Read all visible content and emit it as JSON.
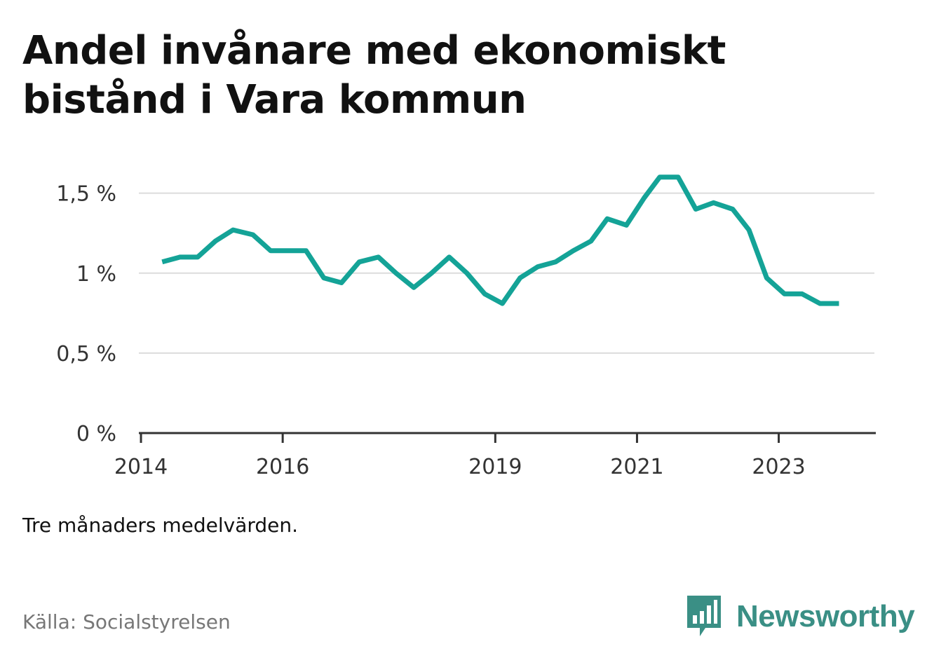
{
  "title_lines": [
    "Andel invånare med ekonomiskt",
    "bistånd i Vara kommun"
  ],
  "note": "Tre månaders medelvärden.",
  "source": "Källa: Socialstyrelsen",
  "brand": {
    "name": "Newsworthy",
    "icon": "newsworthy-logo-icon",
    "color": "#3a8f85"
  },
  "chart_data": {
    "type": "line",
    "line_color": "#14a397",
    "grid": true,
    "y_tick_values": [
      0,
      0.5,
      1,
      1.5
    ],
    "y_tick_labels": [
      "0 %",
      "0,5 %",
      "1 %",
      "1,5 %"
    ],
    "ylim": [
      0,
      1.7
    ],
    "x_tick_values": [
      2014,
      2016,
      2019,
      2021,
      2023
    ],
    "x_tick_labels": [
      "2014",
      "2016",
      "2019",
      "2021",
      "2023"
    ],
    "xlim": [
      2013.97,
      2024.35
    ],
    "series": [
      {
        "x": [
          2014.3,
          2014.55,
          2014.8,
          2015.05,
          2015.3,
          2015.58,
          2015.83,
          2016.07,
          2016.33,
          2016.58,
          2016.83,
          2017.08,
          2017.35,
          2017.6,
          2017.85,
          2018.1,
          2018.35,
          2018.6,
          2018.85,
          2019.1,
          2019.35,
          2019.6,
          2019.85,
          2020.1,
          2020.35,
          2020.58,
          2020.85,
          2021.1,
          2021.32,
          2021.58,
          2021.83,
          2022.08,
          2022.35,
          2022.58,
          2022.83,
          2023.08,
          2023.33,
          2023.58,
          2023.85
        ],
        "values": [
          1.07,
          1.1,
          1.1,
          1.2,
          1.27,
          1.24,
          1.14,
          1.14,
          1.14,
          0.97,
          0.94,
          1.07,
          1.1,
          1.0,
          0.91,
          1.0,
          1.1,
          1.0,
          0.87,
          0.81,
          0.97,
          1.04,
          1.07,
          1.14,
          1.2,
          1.34,
          1.3,
          1.47,
          1.6,
          1.6,
          1.4,
          1.44,
          1.4,
          1.27,
          0.97,
          0.87,
          0.87,
          0.81,
          0.81
        ]
      }
    ]
  }
}
